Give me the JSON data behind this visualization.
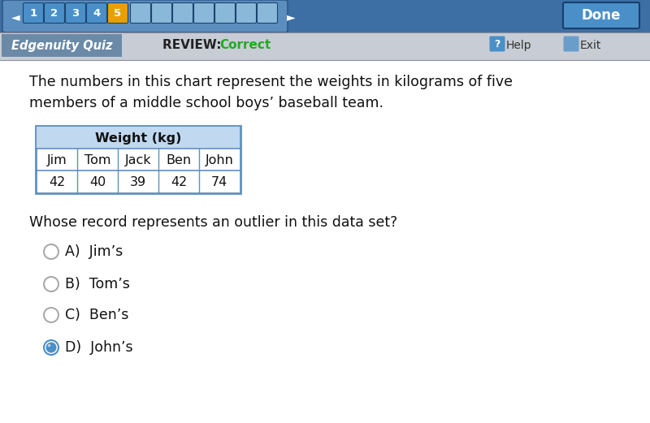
{
  "title_text": "The numbers in this chart represent the weights in kilograms of five\nmembers of a middle school boys’ baseball team.",
  "table_header": "Weight (kg)",
  "table_names": [
    "Jim",
    "Tom",
    "Jack",
    "Ben",
    "John"
  ],
  "table_values": [
    "42",
    "40",
    "39",
    "42",
    "74"
  ],
  "question": "Whose record represents an outlier in this data set?",
  "options": [
    "A)  Jim’s",
    "B)  Tom’s",
    "C)  Ben’s",
    "D)  John’s"
  ],
  "selected_option": 3,
  "top_bar_color": "#3d6fa5",
  "nav_bar_inner": "#5b8dbf",
  "tab_numbers": [
    "1",
    "2",
    "3",
    "4",
    "5"
  ],
  "tab_colors": [
    "#4a8fc8",
    "#4a8fc8",
    "#4a8fc8",
    "#4a8fc8",
    "#e8a000"
  ],
  "empty_tab_color": "#8ab8d8",
  "quiz_label": "Edgenuity Quiz",
  "review_label": "REVIEW: ",
  "correct_label": "Correct",
  "done_button_color": "#4a8fc8",
  "second_bar_color": "#c8cdd5",
  "quiz_bg_color": "#6a8aa8",
  "content_bg": "#ffffff",
  "table_border_color": "#6090c0",
  "table_header_bg": "#c0d8f0",
  "radio_fill_color": "#4a8fc8",
  "radio_border_empty": "#aaaaaa"
}
